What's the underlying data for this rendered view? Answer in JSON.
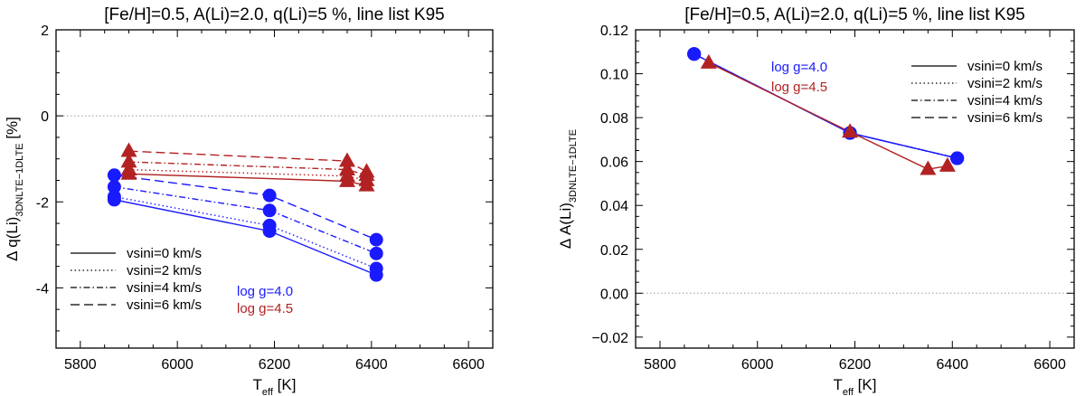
{
  "chart_data": [
    {
      "type": "line",
      "title": "[Fe/H]=0.5, A(Li)=2.0, q(Li)=5 %, line list K95",
      "xlabel": "T",
      "xlabel_sub": "eff",
      "xlabel_unit": " [K]",
      "ylabel": "Δ q(Li)",
      "ylabel_sub": "3DNLTE−1DLTE",
      "ylabel_unit": " [%]",
      "xlim": [
        5750,
        6650
      ],
      "ylim": [
        -5.4,
        2.0
      ],
      "xticks": [
        5800,
        6000,
        6200,
        6400,
        6600
      ],
      "yticks": [
        -4,
        -2,
        0,
        2
      ],
      "reference_line": 0,
      "legend_position": "bottom-left",
      "legend": {
        "styles": [
          {
            "label": "vsini=0 km/s",
            "dash": "solid"
          },
          {
            "label": "vsini=2 km/s",
            "dash": "dotted"
          },
          {
            "label": "vsini=4 km/s",
            "dash": "dashdot"
          },
          {
            "label": "vsini=6 km/s",
            "dash": "dashed"
          }
        ],
        "groups": [
          {
            "label": "log g=4.0",
            "color": "#1a1aff"
          },
          {
            "label": "log g=4.5",
            "color": "#b22222"
          }
        ]
      },
      "series": [
        {
          "name": "log g=4.0, vsini=0 km/s",
          "color": "#1a1aff",
          "marker": "circle",
          "dash": "solid",
          "x": [
            5870,
            6190,
            6410
          ],
          "y": [
            -1.95,
            -2.68,
            -3.7
          ]
        },
        {
          "name": "log g=4.0, vsini=2 km/s",
          "color": "#1a1aff",
          "marker": "circle",
          "dash": "dotted",
          "x": [
            5870,
            6190,
            6410
          ],
          "y": [
            -1.88,
            -2.55,
            -3.55
          ]
        },
        {
          "name": "log g=4.0, vsini=4 km/s",
          "color": "#1a1aff",
          "marker": "circle",
          "dash": "dashdot",
          "x": [
            5870,
            6190,
            6410
          ],
          "y": [
            -1.65,
            -2.2,
            -3.2
          ]
        },
        {
          "name": "log g=4.0, vsini=6 km/s",
          "color": "#1a1aff",
          "marker": "circle",
          "dash": "dashed",
          "x": [
            5870,
            6190,
            6410
          ],
          "y": [
            -1.38,
            -1.85,
            -2.88
          ]
        },
        {
          "name": "log g=4.5, vsini=0 km/s",
          "color": "#b22222",
          "marker": "triangle",
          "dash": "solid",
          "x": [
            5900,
            6350,
            6390
          ],
          "y": [
            -1.35,
            -1.52,
            -1.62
          ]
        },
        {
          "name": "log g=4.5, vsini=2 km/s",
          "color": "#b22222",
          "marker": "triangle",
          "dash": "dotted",
          "x": [
            5900,
            6350,
            6390
          ],
          "y": [
            -1.25,
            -1.4,
            -1.5
          ]
        },
        {
          "name": "log g=4.5, vsini=4 km/s",
          "color": "#b22222",
          "marker": "triangle",
          "dash": "dashdot",
          "x": [
            5900,
            6350,
            6390
          ],
          "y": [
            -1.07,
            -1.25,
            -1.38
          ]
        },
        {
          "name": "log g=4.5, vsini=6 km/s",
          "color": "#b22222",
          "marker": "triangle",
          "dash": "dashed",
          "x": [
            5900,
            6350,
            6390
          ],
          "y": [
            -0.82,
            -1.05,
            -1.3
          ]
        }
      ]
    },
    {
      "type": "line",
      "title": "[Fe/H]=0.5, A(Li)=2.0, q(Li)=5 %, line list K95",
      "xlabel": "T",
      "xlabel_sub": "eff",
      "xlabel_unit": " [K]",
      "ylabel": "Δ A(Li)",
      "ylabel_sub": "3DNLTE−1DLTE",
      "ylabel_unit": "",
      "xlim": [
        5750,
        6650
      ],
      "ylim": [
        -0.025,
        0.12
      ],
      "xticks": [
        5800,
        6000,
        6200,
        6400,
        6600
      ],
      "yticks": [
        -0.02,
        0.0,
        0.02,
        0.04,
        0.06,
        0.08,
        0.1,
        0.12
      ],
      "ytick_labels": [
        "−0.02",
        "0.00",
        "0.02",
        "0.04",
        "0.06",
        "0.08",
        "0.10",
        "0.12"
      ],
      "reference_line": 0,
      "legend_position": "top-right",
      "legend": {
        "styles": [
          {
            "label": "vsini=0  km/s",
            "dash": "solid"
          },
          {
            "label": "vsini=2  km/s",
            "dash": "dotted"
          },
          {
            "label": "vsini=4  km/s",
            "dash": "dashdot"
          },
          {
            "label": "vsini=6  km/s",
            "dash": "dashed"
          }
        ],
        "groups": [
          {
            "label": "log g=4.0",
            "color": "#1a1aff"
          },
          {
            "label": "log g=4.5",
            "color": "#b22222"
          }
        ]
      },
      "series": [
        {
          "name": "log g=4.0, vsini=0 km/s",
          "color": "#1a1aff",
          "marker": "circle",
          "dash": "solid",
          "x": [
            5870,
            6190,
            6410
          ],
          "y": [
            0.109,
            0.073,
            0.0615
          ]
        },
        {
          "name": "log g=4.0, vsini=2 km/s",
          "color": "#1a1aff",
          "marker": "circle",
          "dash": "dotted",
          "x": [
            5870,
            6190,
            6410
          ],
          "y": [
            0.109,
            0.073,
            0.0615
          ]
        },
        {
          "name": "log g=4.0, vsini=4 km/s",
          "color": "#1a1aff",
          "marker": "circle",
          "dash": "dashdot",
          "x": [
            5870,
            6190,
            6410
          ],
          "y": [
            0.109,
            0.073,
            0.0615
          ]
        },
        {
          "name": "log g=4.0, vsini=6 km/s",
          "color": "#1a1aff",
          "marker": "circle",
          "dash": "dashed",
          "x": [
            5870,
            6190,
            6410
          ],
          "y": [
            0.109,
            0.073,
            0.0615
          ]
        },
        {
          "name": "log g=4.5, vsini=0 km/s",
          "color": "#b22222",
          "marker": "triangle",
          "dash": "solid",
          "x": [
            5900,
            6190,
            6350,
            6390
          ],
          "y": [
            0.105,
            0.0735,
            0.0565,
            0.058
          ]
        }
      ]
    }
  ]
}
